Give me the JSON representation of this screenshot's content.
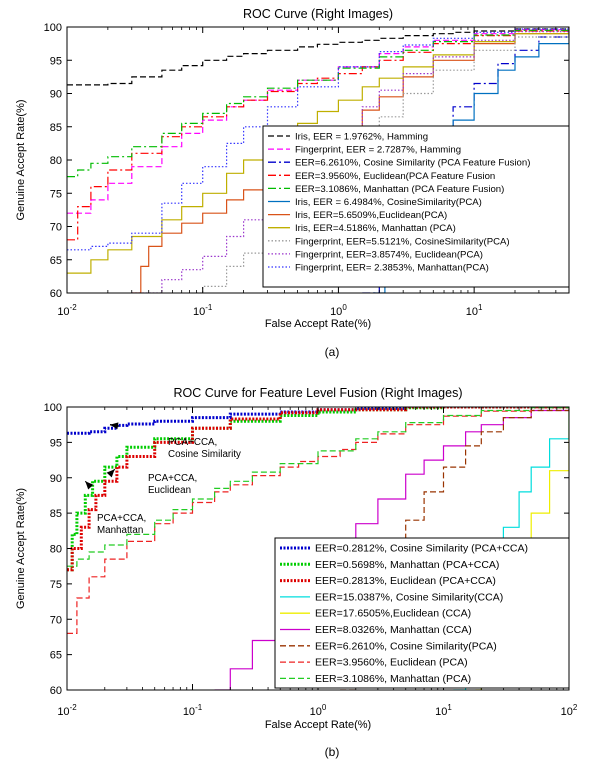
{
  "chart_data": [
    {
      "type": "line",
      "panel_label": "(a)",
      "title": "ROC Curve (Right Images)",
      "xlabel": "False Accept Rate(%)",
      "ylabel": "Genuine Accept Rate(%)",
      "xscale": "log",
      "xlim": [
        0.01,
        50
      ],
      "ylim": [
        60,
        100
      ],
      "grid": false,
      "legend_position": "bottom-right",
      "x_ticks": [
        {
          "value": 0.01,
          "base": "10",
          "exp": "-2"
        },
        {
          "value": 0.1,
          "base": "10",
          "exp": "-1"
        },
        {
          "value": 1,
          "base": "10",
          "exp": "0"
        },
        {
          "value": 10,
          "base": "10",
          "exp": "1"
        }
      ],
      "y_ticks": [
        60,
        65,
        70,
        75,
        80,
        85,
        90,
        95,
        100
      ],
      "series": [
        {
          "name": "Iris, EER = 1.9762%, Hamming",
          "color": "#000000",
          "dash": "6,3",
          "x": [
            0.01,
            0.02,
            0.03,
            0.05,
            0.07,
            0.1,
            0.15,
            0.2,
            0.3,
            0.5,
            0.7,
            1,
            1.5,
            2,
            3,
            5,
            7,
            10,
            20,
            50
          ],
          "y": [
            91.3,
            91.5,
            92.5,
            93.5,
            94.2,
            95,
            95.6,
            96,
            96.5,
            97,
            97.4,
            97.7,
            98,
            98.3,
            98.7,
            99,
            99.2,
            99.4,
            99.7,
            100
          ]
        },
        {
          "name": "Fingerprint, EER = 2.7287%, Hamming",
          "color": "#ff00ff",
          "dash": "6,3",
          "x": [
            0.01,
            0.015,
            0.02,
            0.03,
            0.05,
            0.07,
            0.1,
            0.15,
            0.2,
            0.3,
            0.5,
            1,
            2,
            3,
            5,
            10,
            20,
            50
          ],
          "y": [
            72,
            74,
            76.5,
            79,
            82,
            84,
            86,
            88,
            89,
            90.5,
            92,
            94,
            96,
            97,
            98,
            99,
            99.6,
            100
          ]
        },
        {
          "name": "EER=6.2610%, Cosine Similarity (PCA Feature Fusion)",
          "color": "#0000cc",
          "dash": "8,3,2,3",
          "x": [
            1.5,
            2,
            2.5,
            3,
            4,
            5,
            7,
            10,
            15,
            20,
            30,
            50
          ],
          "y": [
            60,
            66,
            71,
            75,
            80,
            84,
            88,
            91.5,
            94.5,
            96.5,
            98.5,
            99.5
          ]
        },
        {
          "name": "EER=3.9560%, Euclidean(PCA Feature Fusion",
          "color": "#ff0000",
          "dash": "8,3,2,3",
          "x": [
            0.01,
            0.012,
            0.015,
            0.02,
            0.03,
            0.05,
            0.07,
            0.1,
            0.15,
            0.2,
            0.3,
            0.5,
            0.7,
            1,
            1.5,
            2,
            3,
            5,
            10,
            20,
            50
          ],
          "y": [
            68,
            73,
            76,
            78.5,
            81,
            83.5,
            85,
            86.5,
            88,
            89,
            90.3,
            91.5,
            92.3,
            93,
            94,
            95,
            96.2,
            97.5,
            98.7,
            99.4,
            100
          ]
        },
        {
          "name": "EER=3.1086%, Manhattan (PCA Feature Fusion)",
          "color": "#00bb00",
          "dash": "8,3,2,3",
          "x": [
            0.01,
            0.012,
            0.015,
            0.02,
            0.03,
            0.05,
            0.07,
            0.1,
            0.15,
            0.2,
            0.3,
            0.5,
            1,
            2,
            3,
            5,
            10,
            20,
            50
          ],
          "y": [
            77.5,
            78.5,
            79.5,
            80.5,
            82,
            84,
            85.5,
            87,
            88.5,
            89.5,
            90.8,
            92,
            93.8,
            95.5,
            96.5,
            97.8,
            98.8,
            99.5,
            100
          ]
        },
        {
          "name": "Iris, EER = 6.4984%, CosineSimilarity(PCA)",
          "color": "#0070c0",
          "dash": "",
          "x": [
            1.8,
            2.2,
            2.7,
            3.2,
            4,
            5,
            7,
            10,
            15,
            20,
            30,
            50
          ],
          "y": [
            60,
            64,
            68,
            72,
            77,
            81,
            86,
            90,
            93.5,
            95.5,
            97.5,
            99
          ]
        },
        {
          "name": "Iris, EER=5.6509%,Euclidean(PCA)",
          "color": "#d95319",
          "dash": "",
          "x": [
            0.03,
            0.035,
            0.04,
            0.05,
            0.07,
            0.1,
            0.15,
            0.2,
            0.3,
            0.5,
            0.7,
            1,
            1.5,
            2,
            3,
            5,
            10,
            20,
            50
          ],
          "y": [
            60,
            64,
            67,
            69,
            70.5,
            72,
            74,
            75.5,
            77.5,
            80,
            82,
            84.5,
            87.5,
            89.5,
            92.5,
            95,
            97.5,
            99,
            100
          ]
        },
        {
          "name": "Iris, EER=4.5186%, Manhattan (PCA)",
          "color": "#bfaf00",
          "dash": "",
          "x": [
            0.01,
            0.015,
            0.02,
            0.03,
            0.05,
            0.07,
            0.1,
            0.15,
            0.2,
            0.3,
            0.5,
            0.7,
            1,
            1.5,
            2,
            3,
            5,
            10,
            20,
            50
          ],
          "y": [
            63,
            65,
            66.5,
            68.5,
            71,
            73,
            75,
            78,
            80,
            82.5,
            85.5,
            87.3,
            89,
            91,
            92.3,
            94,
            95.8,
            97.8,
            99,
            100
          ]
        },
        {
          "name": "Fingerprint, EER=5.5121%, CosineSimilarity(PCA)",
          "color": "#9a9a9a",
          "dash": "1.5,2",
          "x": [
            0.09,
            0.1,
            0.15,
            0.2,
            0.3,
            0.5,
            0.7,
            1,
            1.5,
            2,
            3,
            5,
            10,
            20,
            50
          ],
          "y": [
            60,
            61,
            64,
            66,
            69,
            73,
            76,
            79.5,
            83.5,
            86.5,
            90,
            93.5,
            96.5,
            98.5,
            99.6
          ]
        },
        {
          "name": "Fingerprint, EER=3.8574%, Euclidean(PCA)",
          "color": "#9933cc",
          "dash": "1.5,2",
          "x": [
            0.03,
            0.05,
            0.07,
            0.1,
            0.15,
            0.2,
            0.3,
            0.5,
            0.7,
            1,
            1.5,
            2,
            3,
            5,
            10,
            20,
            50
          ],
          "y": [
            60,
            62,
            63.5,
            65.5,
            68.5,
            71,
            74.5,
            79,
            82,
            85,
            88,
            90.5,
            93,
            95.5,
            98,
            99.3,
            100
          ]
        },
        {
          "name": "Fingerprint, EER= 2.3853%, Manhattan(PCA)",
          "color": "#3333ff",
          "dash": "1.5,2",
          "x": [
            0.01,
            0.015,
            0.02,
            0.03,
            0.05,
            0.07,
            0.1,
            0.15,
            0.2,
            0.3,
            0.5,
            1,
            2,
            3,
            5,
            10,
            20,
            50
          ],
          "y": [
            66.5,
            67,
            67.5,
            69,
            73.5,
            76.5,
            79,
            82.5,
            85,
            88,
            91,
            94,
            96.3,
            97.3,
            98.3,
            99.2,
            99.7,
            100
          ]
        }
      ]
    },
    {
      "type": "line",
      "panel_label": "(b)",
      "title": "ROC Curve for Feature Level Fusion (Right Images)",
      "xlabel": "False Accept Rate(%)",
      "ylabel": "Genuine Accept Rate(%)",
      "xscale": "log",
      "xlim": [
        0.01,
        100
      ],
      "ylim": [
        60,
        100
      ],
      "grid": false,
      "legend_position": "bottom-right",
      "x_ticks": [
        {
          "value": 0.01,
          "base": "10",
          "exp": "-2"
        },
        {
          "value": 0.1,
          "base": "10",
          "exp": "-1"
        },
        {
          "value": 1,
          "base": "10",
          "exp": "0"
        },
        {
          "value": 10,
          "base": "10",
          "exp": "1"
        },
        {
          "value": 100,
          "base": "10",
          "exp": "2"
        }
      ],
      "y_ticks": [
        60,
        65,
        70,
        75,
        80,
        85,
        90,
        95,
        100
      ],
      "annotations": [
        {
          "lines": [
            "PCA+CCA,",
            "Cosine Similarity"
          ],
          "x": 0.022,
          "y": 97.5
        },
        {
          "lines": [
            "PCA+CCA,",
            "Euclidean"
          ],
          "x": 0.024,
          "y": 91.2
        },
        {
          "lines": [
            "PCA+CCA,",
            "Manhattan"
          ],
          "x": 0.014,
          "y": 89.5
        }
      ],
      "series": [
        {
          "name": "EER=0.2812%, Cosine Similarity (PCA+CCA)",
          "color": "#0000cc",
          "dash": "2,1.5",
          "width": 3,
          "x": [
            0.01,
            0.015,
            0.02,
            0.025,
            0.03,
            0.05,
            0.1,
            0.2,
            0.5,
            1,
            2,
            5,
            10,
            100
          ],
          "y": [
            96.3,
            96.5,
            97,
            97.4,
            97.6,
            98,
            98.5,
            99,
            99.3,
            99.6,
            99.8,
            100,
            100,
            100
          ]
        },
        {
          "name": "EER=0.5698%, Manhattan (PCA+CCA)",
          "color": "#00cc00",
          "dash": "2,1.5",
          "width": 3,
          "x": [
            0.01,
            0.011,
            0.012,
            0.014,
            0.016,
            0.02,
            0.025,
            0.03,
            0.05,
            0.1,
            0.2,
            0.5,
            1,
            2,
            5,
            10,
            100
          ],
          "y": [
            77,
            82,
            85,
            87.5,
            89.5,
            91.5,
            93,
            94.3,
            95.5,
            97,
            98,
            98.8,
            99.3,
            99.6,
            99.9,
            100,
            100
          ]
        },
        {
          "name": "EER=0.2813%, Euclidean (PCA+CCA)",
          "color": "#dd0000",
          "dash": "2,1.5",
          "width": 3,
          "x": [
            0.01,
            0.011,
            0.013,
            0.015,
            0.017,
            0.02,
            0.025,
            0.03,
            0.05,
            0.1,
            0.2,
            0.5,
            1,
            5,
            100
          ],
          "y": [
            77,
            80,
            83,
            85.5,
            87.5,
            89.5,
            91.5,
            93,
            95,
            97,
            98.3,
            99.2,
            99.6,
            100,
            100
          ]
        },
        {
          "name": "EER=15.0387%, Cosine Similarity(CCA)",
          "color": "#00dddd",
          "dash": "",
          "x": [
            12,
            15,
            20,
            25,
            30,
            40,
            50,
            70,
            100
          ],
          "y": [
            60,
            66,
            73,
            79,
            83,
            88,
            91.5,
            95.5,
            100
          ]
        },
        {
          "name": "EER=17.6505%,Euclidean (CCA)",
          "color": "#eeee00",
          "dash": "",
          "x": [
            18,
            20,
            25,
            30,
            40,
            50,
            70,
            100
          ],
          "y": [
            60,
            63,
            69,
            74,
            80,
            85,
            91,
            100
          ]
        },
        {
          "name": "EER=8.0326%, Manhattan (CCA)",
          "color": "#cc00cc",
          "dash": "",
          "x": [
            0.15,
            0.2,
            0.3,
            0.5,
            0.7,
            1,
            1.5,
            2,
            3,
            5,
            7,
            10,
            15,
            20,
            30,
            50,
            100
          ],
          "y": [
            60,
            63,
            67,
            71.5,
            74.5,
            77.5,
            81,
            83.5,
            87,
            90.5,
            92.5,
            94.5,
            96.5,
            97.5,
            98.5,
            99.5,
            100
          ]
        },
        {
          "name": "EER=6.2610%, Cosine Similarity(PCA)",
          "color": "#993300",
          "dash": "6,3",
          "x": [
            1.5,
            2,
            2.5,
            3,
            4,
            5,
            7,
            10,
            15,
            20,
            30,
            50,
            100
          ],
          "y": [
            60,
            66,
            71,
            75,
            80,
            84,
            88,
            91.5,
            94.5,
            96.5,
            98.5,
            99.5,
            100
          ]
        },
        {
          "name": "EER=3.9560%, Euclidean (PCA)",
          "color": "#ee2222",
          "dash": "6,3",
          "x": [
            0.01,
            0.012,
            0.015,
            0.02,
            0.03,
            0.05,
            0.07,
            0.1,
            0.15,
            0.2,
            0.3,
            0.5,
            0.7,
            1,
            1.5,
            2,
            3,
            5,
            10,
            20,
            50,
            100
          ],
          "y": [
            68,
            73,
            76,
            78.5,
            81,
            83.5,
            85,
            86.5,
            88,
            89,
            90.3,
            91.5,
            92.3,
            93,
            94,
            95,
            96.2,
            97.5,
            98.7,
            99.4,
            99.9,
            100
          ]
        },
        {
          "name": "EER=3.1086%, Manhattan (PCA)",
          "color": "#22cc22",
          "dash": "6,3",
          "x": [
            0.01,
            0.012,
            0.015,
            0.02,
            0.03,
            0.05,
            0.07,
            0.1,
            0.15,
            0.2,
            0.3,
            0.5,
            1,
            2,
            3,
            5,
            10,
            20,
            50,
            100
          ],
          "y": [
            77.5,
            78.5,
            79.5,
            80.5,
            82,
            84,
            85.5,
            87,
            88.5,
            89.5,
            90.8,
            92,
            93.8,
            95.5,
            96.5,
            97.8,
            98.8,
            99.5,
            99.9,
            100
          ]
        }
      ]
    }
  ]
}
